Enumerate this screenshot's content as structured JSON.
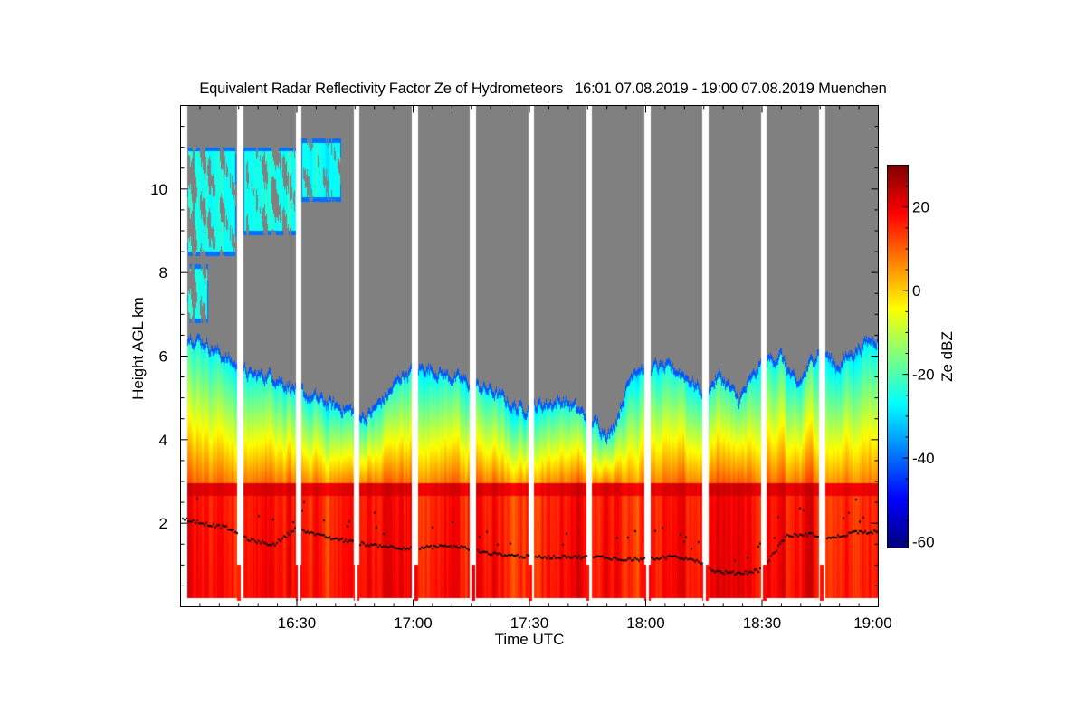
{
  "chart_data": {
    "type": "heatmap",
    "title": "Equivalent Radar Reflectivity Factor Ze of Hydrometeors   16:01 07.08.2019 - 19:00 07.08.2019 Muenchen",
    "xlabel": "Time UTC",
    "ylabel": "Height AGL km",
    "colorbar_label": "Ze dBZ",
    "xlim_hours": [
      16.0,
      19.0
    ],
    "ylim_km": [
      0,
      12
    ],
    "clim_dbz": [
      -61.5,
      30
    ],
    "colormap": "jet",
    "x_ticks": [
      {
        "value": 16.5,
        "label": "16:30"
      },
      {
        "value": 17.0,
        "label": "17:00"
      },
      {
        "value": 17.5,
        "label": "17:30"
      },
      {
        "value": 18.0,
        "label": "18:00"
      },
      {
        "value": 18.5,
        "label": "18:30"
      },
      {
        "value": 19.0,
        "label": "19:00"
      }
    ],
    "y_ticks": [
      {
        "value": 2,
        "label": "2"
      },
      {
        "value": 4,
        "label": "4"
      },
      {
        "value": 6,
        "label": "6"
      },
      {
        "value": 8,
        "label": "8"
      },
      {
        "value": 10,
        "label": "10"
      }
    ],
    "colorbar_ticks": [
      {
        "value": 20,
        "label": "20"
      },
      {
        "value": 0,
        "label": "0"
      },
      {
        "value": -20,
        "label": "-20"
      },
      {
        "value": -40,
        "label": "-40"
      },
      {
        "value": -60,
        "label": "-60"
      }
    ],
    "no_signal_color": "#808080",
    "missing_data_color": "#ffffff",
    "data_gaps_hours": [
      [
        16.245,
        16.27
      ],
      [
        16.495,
        16.52
      ],
      [
        16.745,
        16.77
      ],
      [
        16.995,
        17.02
      ],
      [
        17.245,
        17.27
      ],
      [
        17.495,
        17.52
      ],
      [
        17.745,
        17.77
      ],
      [
        17.995,
        18.02
      ],
      [
        18.245,
        18.272
      ],
      [
        18.495,
        18.52
      ],
      [
        18.745,
        18.772
      ]
    ],
    "melting_layer_km": 2.8,
    "echo_top_km": {
      "time_hours": [
        16.03,
        16.1,
        16.2,
        16.25,
        16.3,
        16.4,
        16.45,
        16.55,
        16.65,
        16.72,
        16.8,
        16.9,
        16.95,
        17.05,
        17.15,
        17.25,
        17.35,
        17.45,
        17.55,
        17.65,
        17.75,
        17.85,
        17.95,
        18.05,
        18.15,
        18.25,
        18.32,
        18.4,
        18.5,
        18.58,
        18.65,
        18.75,
        18.82,
        18.9,
        18.98
      ],
      "height": [
        6.6,
        6.4,
        6.0,
        5.8,
        5.6,
        5.6,
        5.4,
        5.1,
        4.9,
        4.8,
        4.6,
        5.2,
        5.6,
        5.8,
        5.6,
        5.4,
        5.2,
        4.8,
        4.9,
        5.0,
        4.6,
        4.2,
        5.8,
        5.8,
        5.7,
        5.2,
        5.6,
        5.0,
        5.9,
        6.1,
        5.3,
        6.3,
        5.8,
        6.2,
        6.5
      ]
    },
    "upper_cloud_patches": [
      {
        "t0": 16.03,
        "t1": 16.24,
        "h0": 8.4,
        "h1": 11.0
      },
      {
        "t0": 16.03,
        "t1": 16.12,
        "h0": 6.8,
        "h1": 8.2
      },
      {
        "t0": 16.27,
        "t1": 16.5,
        "h0": 8.9,
        "h1": 11.0
      },
      {
        "t0": 16.52,
        "t1": 16.69,
        "h0": 9.7,
        "h1": 11.2
      }
    ],
    "cloud_base_km": {
      "time_hours": [
        16.02,
        16.1,
        16.2,
        16.3,
        16.4,
        16.5,
        16.6,
        16.7,
        16.8,
        16.9,
        17.0,
        17.1,
        17.2,
        17.3,
        17.4,
        17.5,
        17.6,
        17.7,
        17.8,
        17.9,
        18.0,
        18.1,
        18.2,
        18.3,
        18.4,
        18.5,
        18.6,
        18.7,
        18.8,
        18.9
      ],
      "height": [
        2.1,
        2.0,
        1.9,
        1.6,
        1.5,
        1.9,
        1.7,
        1.6,
        1.5,
        1.45,
        1.4,
        1.45,
        1.45,
        1.3,
        1.25,
        1.2,
        1.2,
        1.2,
        1.2,
        1.15,
        1.15,
        1.2,
        1.15,
        0.85,
        0.8,
        0.9,
        1.7,
        1.75,
        1.65,
        1.8
      ]
    }
  }
}
